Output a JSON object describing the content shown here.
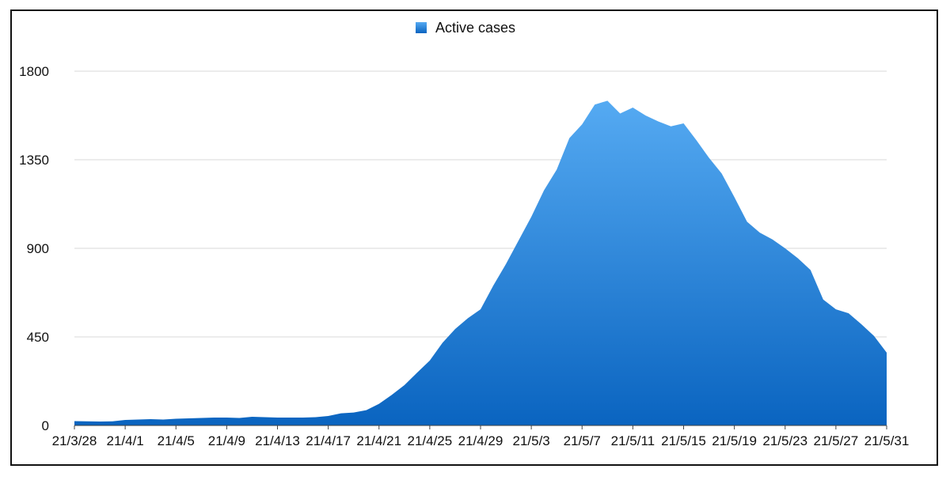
{
  "chart_data": {
    "type": "area",
    "title": "",
    "xlabel": "",
    "ylabel": "",
    "ylim": [
      0,
      1800
    ],
    "yticks": [
      0,
      450,
      900,
      1350,
      1800
    ],
    "grid": true,
    "legend_position": "top-center",
    "x_tick_labels": [
      "21/3/28",
      "21/4/1",
      "21/4/5",
      "21/4/9",
      "21/4/13",
      "21/4/17",
      "21/4/21",
      "21/4/25",
      "21/4/29",
      "21/5/3",
      "21/5/7",
      "21/5/11",
      "21/5/15",
      "21/5/19",
      "21/5/23",
      "21/5/27",
      "21/5/31"
    ],
    "colors": {
      "area_top": "#55aaf2",
      "area_bottom": "#0a64c0",
      "grid": "#d9d9d9",
      "axis": "#444444"
    },
    "series": [
      {
        "name": "Active cases",
        "x": [
          "21/3/28",
          "21/3/29",
          "21/3/30",
          "21/3/31",
          "21/4/1",
          "21/4/2",
          "21/4/3",
          "21/4/4",
          "21/4/5",
          "21/4/6",
          "21/4/7",
          "21/4/8",
          "21/4/9",
          "21/4/10",
          "21/4/11",
          "21/4/12",
          "21/4/13",
          "21/4/14",
          "21/4/15",
          "21/4/16",
          "21/4/17",
          "21/4/18",
          "21/4/19",
          "21/4/20",
          "21/4/21",
          "21/4/22",
          "21/4/23",
          "21/4/24",
          "21/4/25",
          "21/4/26",
          "21/4/27",
          "21/4/28",
          "21/4/29",
          "21/4/30",
          "21/5/1",
          "21/5/2",
          "21/5/3",
          "21/5/4",
          "21/5/5",
          "21/5/6",
          "21/5/7",
          "21/5/8",
          "21/5/9",
          "21/5/10",
          "21/5/11",
          "21/5/12",
          "21/5/13",
          "21/5/14",
          "21/5/15",
          "21/5/16",
          "21/5/17",
          "21/5/18",
          "21/5/19",
          "21/5/20",
          "21/5/21",
          "21/5/22",
          "21/5/23",
          "21/5/24",
          "21/5/25",
          "21/5/26",
          "21/5/27",
          "21/5/28",
          "21/5/29",
          "21/5/30",
          "21/5/31"
        ],
        "values": [
          22,
          21,
          20,
          21,
          28,
          30,
          32,
          30,
          34,
          36,
          38,
          40,
          40,
          38,
          44,
          42,
          40,
          40,
          40,
          42,
          48,
          62,
          66,
          78,
          110,
          155,
          205,
          268,
          330,
          420,
          490,
          545,
          590,
          710,
          820,
          940,
          1060,
          1195,
          1300,
          1460,
          1530,
          1630,
          1650,
          1585,
          1615,
          1575,
          1545,
          1520,
          1535,
          1450,
          1360,
          1280,
          1160,
          1035,
          980,
          945,
          900,
          850,
          790,
          640,
          590,
          570,
          515,
          455,
          370
        ]
      }
    ]
  }
}
